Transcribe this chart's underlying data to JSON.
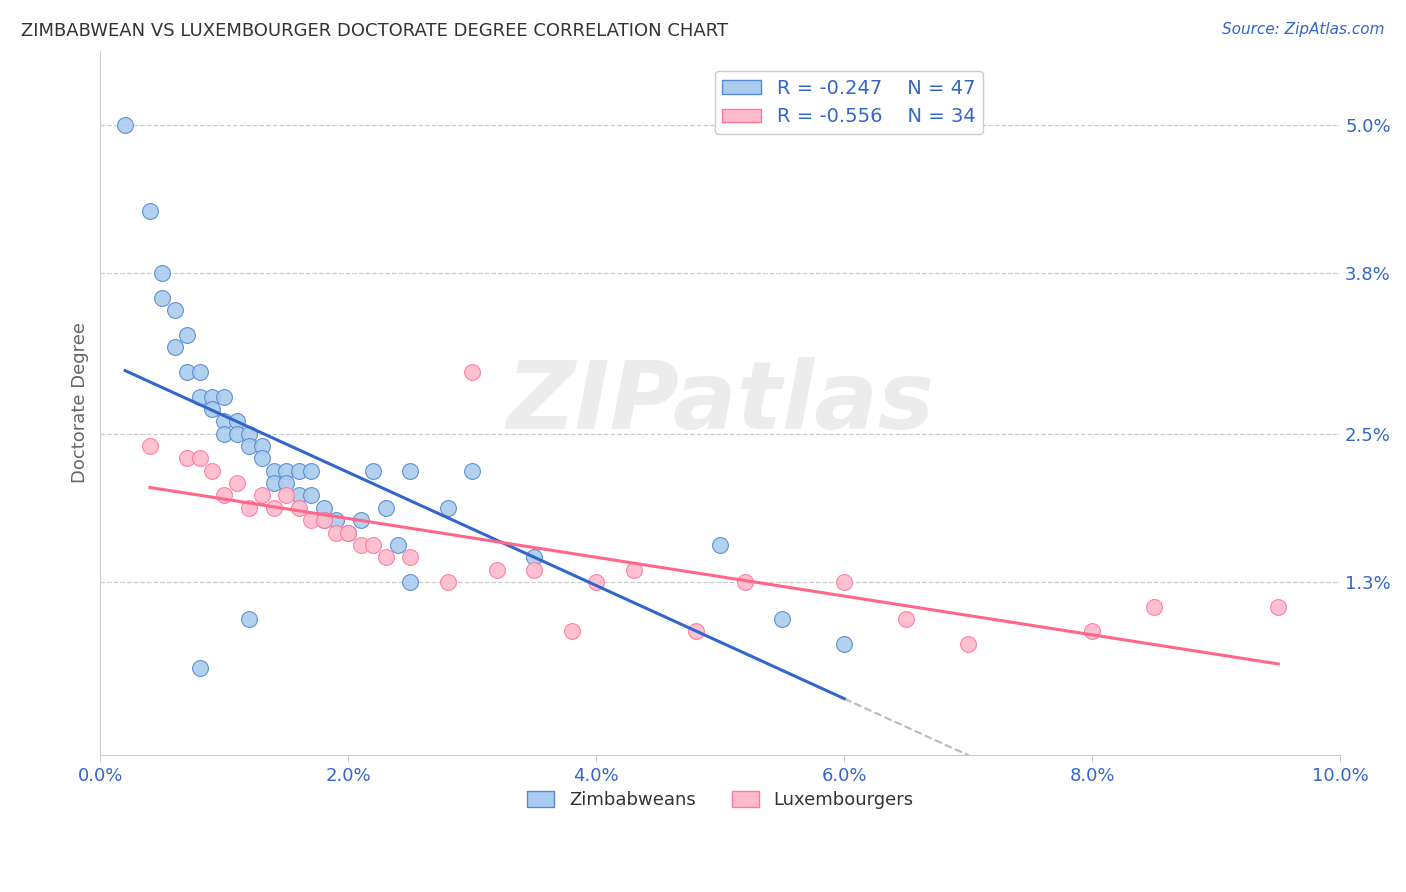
{
  "title": "ZIMBABWEAN VS LUXEMBOURGER DOCTORATE DEGREE CORRELATION CHART",
  "source": "Source: ZipAtlas.com",
  "ylabel": "Doctorate Degree",
  "xlim": [
    0.0,
    0.1
  ],
  "ylim": [
    -0.001,
    0.056
  ],
  "yticks": [
    0.013,
    0.025,
    0.038,
    0.05
  ],
  "ytick_labels": [
    "1.3%",
    "2.5%",
    "3.8%",
    "5.0%"
  ],
  "xticks": [
    0.0,
    0.02,
    0.04,
    0.06,
    0.08,
    0.1
  ],
  "xtick_labels": [
    "0.0%",
    "2.0%",
    "4.0%",
    "6.0%",
    "8.0%",
    "10.0%"
  ],
  "blue_R": "-0.247",
  "blue_N": "47",
  "pink_R": "-0.556",
  "pink_N": "34",
  "blue_fill": "#AACCEE",
  "pink_fill": "#FFBBCC",
  "blue_edge": "#5588CC",
  "pink_edge": "#FF7799",
  "blue_line": "#3366CC",
  "pink_line": "#FF6688",
  "dash_color": "#BBBBBB",
  "watermark": "ZIPatlas",
  "bg": "#FFFFFF",
  "grid_color": "#CCCCCC",
  "title_color": "#333333",
  "tick_color": "#3366CC",
  "legend_label_color": "#3366CC",
  "blue_scatter_x": [
    0.002,
    0.004,
    0.005,
    0.005,
    0.006,
    0.006,
    0.007,
    0.007,
    0.008,
    0.008,
    0.009,
    0.009,
    0.01,
    0.01,
    0.01,
    0.011,
    0.011,
    0.012,
    0.012,
    0.013,
    0.013,
    0.014,
    0.014,
    0.015,
    0.015,
    0.016,
    0.016,
    0.017,
    0.017,
    0.018,
    0.018,
    0.019,
    0.02,
    0.021,
    0.022,
    0.023,
    0.024,
    0.025,
    0.025,
    0.028,
    0.03,
    0.035,
    0.05,
    0.055,
    0.06,
    0.008,
    0.012
  ],
  "blue_scatter_y": [
    0.05,
    0.043,
    0.038,
    0.036,
    0.035,
    0.032,
    0.033,
    0.03,
    0.03,
    0.028,
    0.028,
    0.027,
    0.028,
    0.026,
    0.025,
    0.026,
    0.025,
    0.025,
    0.024,
    0.024,
    0.023,
    0.022,
    0.021,
    0.022,
    0.021,
    0.022,
    0.02,
    0.022,
    0.02,
    0.019,
    0.018,
    0.018,
    0.017,
    0.018,
    0.022,
    0.019,
    0.016,
    0.022,
    0.013,
    0.019,
    0.022,
    0.015,
    0.016,
    0.01,
    0.008,
    0.006,
    0.01
  ],
  "pink_scatter_x": [
    0.004,
    0.007,
    0.008,
    0.009,
    0.01,
    0.011,
    0.012,
    0.013,
    0.014,
    0.015,
    0.016,
    0.017,
    0.018,
    0.019,
    0.02,
    0.021,
    0.022,
    0.023,
    0.025,
    0.028,
    0.03,
    0.032,
    0.035,
    0.038,
    0.04,
    0.043,
    0.048,
    0.052,
    0.06,
    0.065,
    0.07,
    0.08,
    0.085,
    0.095
  ],
  "pink_scatter_y": [
    0.024,
    0.023,
    0.023,
    0.022,
    0.02,
    0.021,
    0.019,
    0.02,
    0.019,
    0.02,
    0.019,
    0.018,
    0.018,
    0.017,
    0.017,
    0.016,
    0.016,
    0.015,
    0.015,
    0.013,
    0.03,
    0.014,
    0.014,
    0.009,
    0.013,
    0.014,
    0.009,
    0.013,
    0.013,
    0.01,
    0.008,
    0.009,
    0.011,
    0.011
  ]
}
